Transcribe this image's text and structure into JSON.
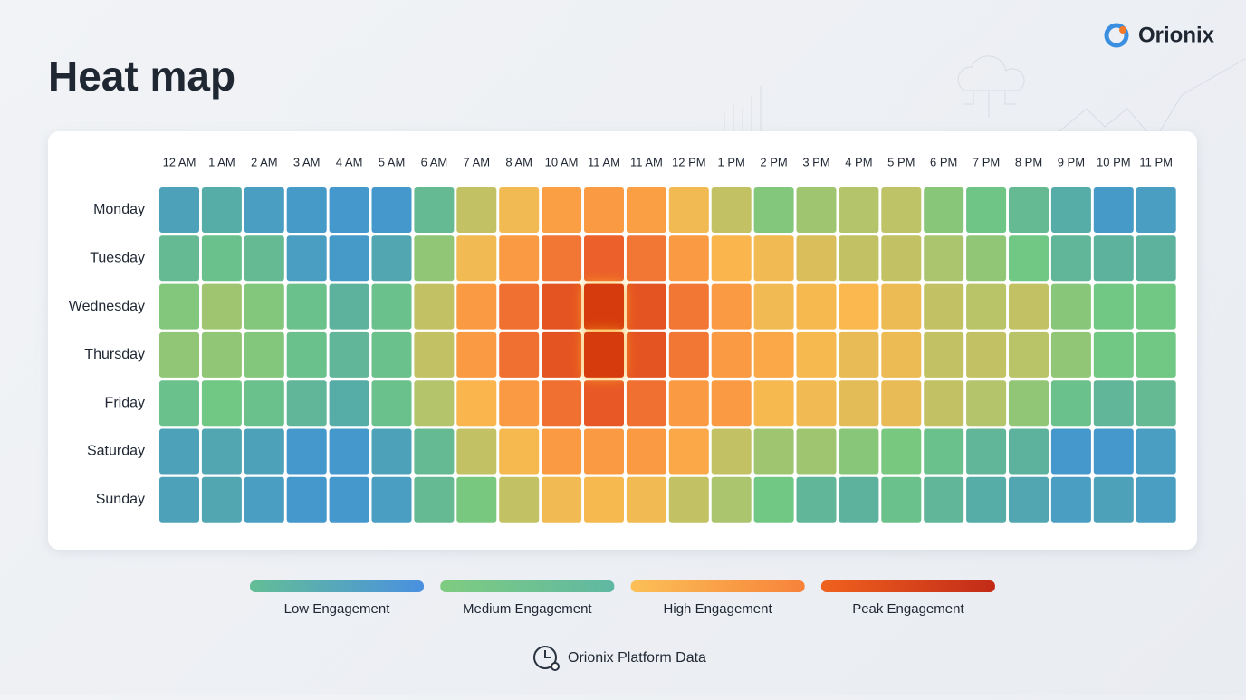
{
  "brand": "Orionix",
  "source": "Orionix Platform Data",
  "chart_data": {
    "type": "heatmap",
    "title": "Heat map",
    "x": [
      "12 AM",
      "1 AM",
      "2 AM",
      "3 AM",
      "4 AM",
      "5 AM",
      "6 AM",
      "7 AM",
      "8 AM",
      "10 AM",
      "11 AM",
      "11 AM",
      "12 PM",
      "1 PM",
      "2 PM",
      "3 PM",
      "4 PM",
      "5 PM",
      "6 PM",
      "7 PM",
      "8 PM",
      "9 PM",
      "10 PM",
      "11 PM"
    ],
    "y": [
      "Monday",
      "Tuesday",
      "Wednesday",
      "Thursday",
      "Friday",
      "Saturday",
      "Sunday"
    ],
    "values": [
      [
        10,
        15,
        8,
        6,
        5,
        5,
        22,
        45,
        55,
        65,
        66,
        65,
        55,
        45,
        32,
        38,
        42,
        44,
        33,
        27,
        22,
        15,
        6,
        8
      ],
      [
        22,
        25,
        22,
        8,
        6,
        12,
        35,
        55,
        66,
        78,
        85,
        78,
        66,
        58,
        55,
        50,
        45,
        45,
        40,
        35,
        28,
        20,
        18,
        18
      ],
      [
        32,
        38,
        32,
        25,
        18,
        25,
        45,
        66,
        80,
        90,
        100,
        90,
        78,
        66,
        55,
        56,
        57,
        54,
        45,
        43,
        45,
        33,
        28,
        28
      ],
      [
        35,
        35,
        32,
        25,
        20,
        25,
        45,
        66,
        80,
        90,
        100,
        90,
        78,
        66,
        62,
        56,
        53,
        54,
        45,
        45,
        43,
        35,
        28,
        28
      ],
      [
        25,
        28,
        25,
        20,
        15,
        25,
        42,
        58,
        66,
        80,
        88,
        80,
        66,
        66,
        56,
        55,
        52,
        53,
        45,
        42,
        35,
        25,
        20,
        22
      ],
      [
        10,
        12,
        10,
        5,
        5,
        10,
        22,
        45,
        56,
        66,
        66,
        66,
        62,
        45,
        38,
        38,
        33,
        30,
        25,
        20,
        18,
        5,
        5,
        8
      ],
      [
        10,
        12,
        8,
        5,
        5,
        8,
        22,
        30,
        45,
        55,
        56,
        55,
        45,
        40,
        28,
        20,
        18,
        25,
        20,
        15,
        12,
        8,
        10,
        8
      ]
    ],
    "zlim": [
      0,
      100
    ],
    "colors": [
      "#3b8fe0",
      "#55aaa8",
      "#72c882",
      "#b8c468",
      "#fbb84e",
      "#f98a3c",
      "#ea5e2a",
      "#d63a0e"
    ],
    "legend": [
      {
        "name": "Low Engagement",
        "colors": [
          "#63be96",
          "#4a90e0"
        ]
      },
      {
        "name": "Medium Engagement",
        "colors": [
          "#7fcc80",
          "#5fb8a2"
        ]
      },
      {
        "name": "High Engagement",
        "colors": [
          "#fcc057",
          "#f7823a"
        ]
      },
      {
        "name": "Peak Engagement",
        "colors": [
          "#f0621e",
          "#c22a18"
        ]
      }
    ]
  }
}
